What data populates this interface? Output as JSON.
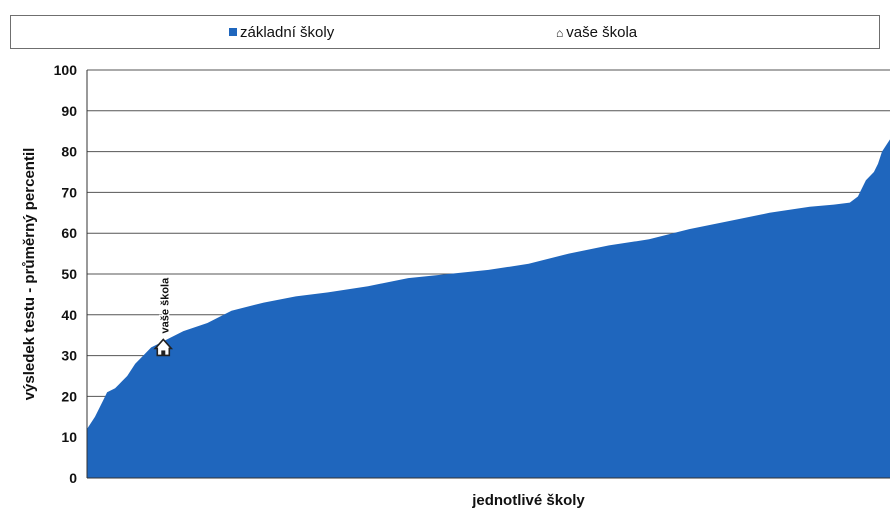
{
  "legend": {
    "items": [
      {
        "label": "základní školy",
        "symbol": "square-icon",
        "color": "#1f66bd"
      },
      {
        "label": "vaše škola",
        "symbol": "house-icon"
      }
    ]
  },
  "chart_data": {
    "type": "area",
    "title": "",
    "xlabel": "jednotlivé školy",
    "ylabel": "výsledek testu - průměrný percentil",
    "ylim": [
      0,
      100
    ],
    "yticks": [
      "0",
      "10",
      "20",
      "30",
      "40",
      "50",
      "60",
      "70",
      "80",
      "90",
      "100"
    ],
    "grid": true,
    "legend_position": "top",
    "series": [
      {
        "name": "základní školy",
        "color": "#1f66bd",
        "note_x": "schools sorted ascending; x = rank fraction (0..1)",
        "x": [
          0,
          0.01,
          0.02,
          0.025,
          0.035,
          0.04,
          0.045,
          0.05,
          0.06,
          0.07,
          0.08,
          0.09,
          0.1,
          0.12,
          0.15,
          0.18,
          0.22,
          0.26,
          0.3,
          0.35,
          0.4,
          0.45,
          0.5,
          0.55,
          0.6,
          0.65,
          0.7,
          0.75,
          0.8,
          0.85,
          0.9,
          0.93,
          0.95,
          0.96,
          0.97,
          0.98,
          0.985,
          0.99,
          1.0
        ],
        "values": [
          12,
          15,
          19,
          21,
          22,
          23,
          24,
          25,
          28,
          30,
          32,
          33,
          34,
          36,
          38,
          41,
          43,
          44.5,
          45.5,
          47,
          49,
          50,
          51,
          52.5,
          55,
          57,
          58.5,
          61,
          63,
          65,
          66.5,
          67,
          67.5,
          69,
          73,
          75,
          77,
          80,
          83
        ]
      }
    ],
    "annotation": {
      "label": "vaše škola",
      "icon": "house-icon",
      "x": 0.095,
      "y": 32
    }
  }
}
